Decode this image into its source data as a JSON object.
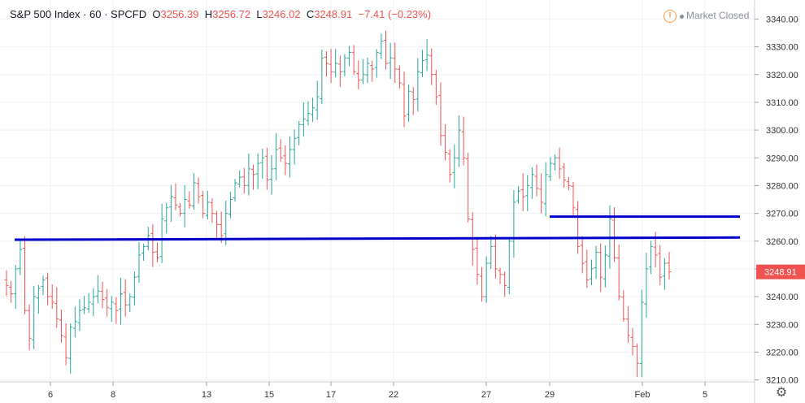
{
  "header": {
    "title": "S&P 500 Index · 60 · SPCFD",
    "o_label": "O",
    "o_value": "3256.39",
    "h_label": "H",
    "h_value": "3256.72",
    "l_label": "L",
    "l_value": "3246.02",
    "c_label": "C",
    "c_value": "3248.91",
    "change": "−7.41 (−0.23%)"
  },
  "status": {
    "market": "Market Closed",
    "icon": "warning-icon"
  },
  "settings_icon": "gear-icon",
  "chart_data": {
    "type": "ohlc",
    "title": "S&P 500 Index · 60 · SPCFD",
    "ylim": [
      3207,
      3343
    ],
    "y_ticks": [
      "3210.00",
      "3220.00",
      "3230.00",
      "3240.00",
      "3250.00",
      "3260.00",
      "3270.00",
      "3280.00",
      "3290.00",
      "3300.00",
      "3310.00",
      "3320.00",
      "3330.00",
      "3340.00"
    ],
    "x_ticks": [
      "6",
      "8",
      "13",
      "15",
      "17",
      "22",
      "27",
      "29",
      "Feb",
      "5"
    ],
    "last_price": "3248.91",
    "up_color": "#26a69a",
    "down_color": "#ef5350",
    "line_color": "#0000cc",
    "levels": [
      {
        "from_bar": 0,
        "from_value": 3260.5,
        "to_bar": 112,
        "to_value": 3261.3
      },
      {
        "from_bar": 78,
        "from_value": 3268.8,
        "to_bar": 112,
        "to_value": 3268.8
      }
    ],
    "closes": [
      3244,
      3241,
      3250,
      3257,
      3235,
      3225,
      3240,
      3243,
      3246,
      3240,
      3238,
      3232,
      3226,
      3218,
      3229,
      3231,
      3235,
      3236,
      3238,
      3240,
      3242,
      3239,
      3236,
      3238,
      3235,
      3241,
      3237,
      3240,
      3247,
      3255,
      3258,
      3262,
      3256,
      3254,
      3268,
      3272,
      3276,
      3273,
      3270,
      3275,
      3273,
      3281,
      3276,
      3270,
      3274,
      3270,
      3266,
      3262,
      3270,
      3275,
      3281,
      3283,
      3280,
      3286,
      3284,
      3288,
      3290,
      3282,
      3286,
      3293,
      3290,
      3288,
      3293,
      3297,
      3302,
      3304,
      3306,
      3308,
      3312,
      3326,
      3324,
      3321,
      3324,
      3321,
      3326,
      3328,
      3321,
      3318,
      3320,
      3324,
      3322,
      3328,
      3332,
      3324,
      3326,
      3322,
      3317,
      3305,
      3314,
      3311,
      3321,
      3325,
      3327,
      3320,
      3312,
      3298,
      3292,
      3284,
      3290,
      3300,
      3290,
      3268,
      3257,
      3248,
      3240,
      3252,
      3258,
      3250,
      3248,
      3244,
      3260,
      3274,
      3278,
      3276,
      3280,
      3284,
      3279,
      3274,
      3284,
      3288,
      3290,
      3286,
      3282,
      3280,
      3272,
      3258,
      3252,
      3246,
      3250,
      3256,
      3247,
      3255,
      3268,
      3254,
      3240,
      3232,
      3226,
      3222,
      3216,
      3238,
      3250,
      3258,
      3255,
      3247,
      3252,
      3248.91
    ],
    "dates": [
      "Jan 6",
      "Jan 8",
      "Jan 13",
      "Jan 15",
      "Jan 17",
      "Jan 22",
      "Jan 27",
      "Jan 29",
      "Feb",
      "Feb 5"
    ]
  }
}
